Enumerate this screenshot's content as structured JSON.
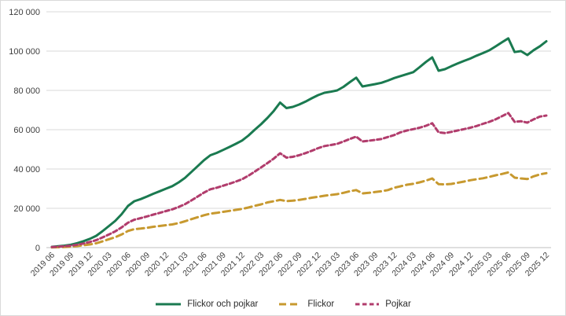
{
  "chart_data": {
    "type": "line",
    "title": "",
    "xlabel": "",
    "ylabel": "",
    "ylim": [
      0,
      120000
    ],
    "grid": true,
    "legend_position": "bottom",
    "y_ticks": [
      0,
      20000,
      40000,
      60000,
      80000,
      100000,
      120000
    ],
    "y_tick_labels": [
      "0",
      "20 000",
      "40 000",
      "60 000",
      "80 000",
      "100 000",
      "120 000"
    ],
    "x": [
      "2019 06",
      "2019 07",
      "2019 08",
      "2019 09",
      "2019 10",
      "2019 11",
      "2019 12",
      "2020 01",
      "2020 02",
      "2020 03",
      "2020 04",
      "2020 05",
      "2020 06",
      "2020 07",
      "2020 08",
      "2020 09",
      "2020 10",
      "2020 11",
      "2020 12",
      "2021 01",
      "2021 02",
      "2021 03",
      "2021 04",
      "2021 05",
      "2021 06",
      "2021 07",
      "2021 08",
      "2021 09",
      "2021 10",
      "2021 11",
      "2021 12",
      "2022 01",
      "2022 02",
      "2022 03",
      "2022 04",
      "2022 05",
      "2022 06",
      "2022 07",
      "2022 08",
      "2022 09",
      "2022 10",
      "2022 11",
      "2022 12",
      "2023 01",
      "2023 02",
      "2023 03",
      "2023 04",
      "2023 05",
      "2023 06",
      "2023 07",
      "2023 08",
      "2023 09",
      "2023 10",
      "2023 11",
      "2023 12",
      "2024 01",
      "2024 02",
      "2024 03",
      "2024 04",
      "2024 05",
      "2024 06",
      "2024 07",
      "2024 08",
      "2024 09",
      "2024 10",
      "2024 11",
      "2024 12",
      "2025 01",
      "2025 02",
      "2025 03",
      "2025 04",
      "2025 05",
      "2025 06",
      "2025 07",
      "2025 08",
      "2025 09",
      "2025 10",
      "2025 11",
      "2025 12"
    ],
    "x_tick_labels": [
      "2019 06",
      "2019 09",
      "2019 12",
      "2020 03",
      "2020 06",
      "2020 09",
      "2020 12",
      "2021 03",
      "2021 06",
      "2021 09",
      "2021 12",
      "2022 03",
      "2022 06",
      "2022 09",
      "2022 12",
      "2023 03",
      "2023 06",
      "2023 09",
      "2023 12",
      "2024 03",
      "2024 06",
      "2024 09",
      "2024 12",
      "2025 03",
      "2025 06",
      "2025 09",
      "2025 12"
    ],
    "x_tick_every": 3,
    "series": [
      {
        "name": "Flickor och pojkar",
        "color": "#1a7a50",
        "style": "solid",
        "values": [
          400,
          700,
          1000,
          1500,
          2300,
          3300,
          4500,
          6000,
          8400,
          11000,
          13600,
          17000,
          21200,
          23600,
          24700,
          26000,
          27400,
          28700,
          30000,
          31300,
          33200,
          35500,
          38500,
          41500,
          44500,
          47000,
          48200,
          49700,
          51200,
          52800,
          54500,
          57000,
          60000,
          62800,
          66000,
          69500,
          73800,
          71000,
          71600,
          72800,
          74300,
          76000,
          77600,
          78800,
          79300,
          80000,
          81800,
          84200,
          86500,
          82000,
          82600,
          83200,
          83900,
          85000,
          86300,
          87300,
          88300,
          89300,
          91800,
          94500,
          96800,
          90000,
          90800,
          92300,
          93700,
          95000,
          96200,
          97700,
          99000,
          100400,
          102400,
          104500,
          106500,
          99500,
          100000,
          98000,
          100500,
          102500,
          105000
        ]
      },
      {
        "name": "Flickor",
        "color": "#c7992f",
        "style": "dashed",
        "values": [
          100,
          200,
          300,
          500,
          800,
          1200,
          1600,
          2200,
          3200,
          4300,
          5300,
          6700,
          8500,
          9400,
          9700,
          10100,
          10600,
          11000,
          11400,
          11800,
          12500,
          13400,
          14500,
          15500,
          16500,
          17300,
          17700,
          18200,
          18700,
          19200,
          19700,
          20400,
          21300,
          22000,
          23000,
          23600,
          24300,
          23700,
          23900,
          24300,
          24800,
          25400,
          25900,
          26400,
          26800,
          27200,
          27900,
          28700,
          29300,
          27600,
          27900,
          28300,
          28700,
          29300,
          30500,
          31200,
          32000,
          32500,
          33200,
          34100,
          35200,
          32300,
          32200,
          32400,
          33000,
          33600,
          34300,
          34800,
          35300,
          36000,
          36800,
          37500,
          38300,
          35600,
          35200,
          34900,
          36300,
          37300,
          37900
        ]
      },
      {
        "name": "Pojkar",
        "color": "#b13c6c",
        "style": "dashed-short",
        "values": [
          300,
          500,
          700,
          1000,
          1500,
          2100,
          2900,
          3800,
          5200,
          6700,
          8300,
          10300,
          12700,
          14200,
          15000,
          15900,
          16800,
          17700,
          18600,
          19500,
          20700,
          22100,
          24000,
          26000,
          28000,
          29700,
          30500,
          31500,
          32500,
          33600,
          34800,
          36600,
          38700,
          40800,
          43000,
          45300,
          48000,
          45800,
          46200,
          47000,
          48100,
          49300,
          50600,
          51700,
          52200,
          52800,
          54000,
          55300,
          56500,
          54000,
          54400,
          54800,
          55300,
          56300,
          57300,
          58700,
          59600,
          60300,
          61000,
          62000,
          63300,
          58700,
          58300,
          58900,
          59600,
          60300,
          61000,
          61900,
          63000,
          64000,
          65300,
          66900,
          68500,
          64000,
          64300,
          63600,
          65300,
          66700,
          67200
        ]
      }
    ],
    "colors": {
      "grid": "#d9d9d9",
      "axis": "#bfbfbf",
      "text": "#404040",
      "background": "#ffffff"
    }
  }
}
